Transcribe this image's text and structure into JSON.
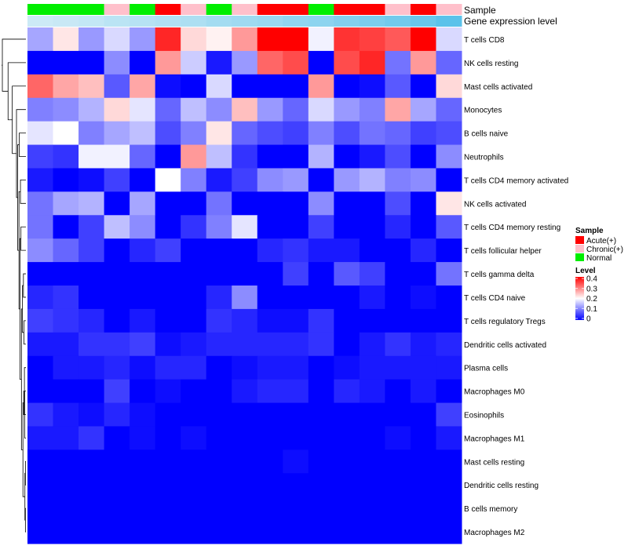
{
  "chart_data": {
    "type": "heatmap",
    "annotation_titles": [
      "Sample",
      "Gene expression level"
    ],
    "rows": [
      "T cells CD8",
      "NK cells resting",
      "Mast cells activated",
      "Monocytes",
      "B cells naive",
      "Neutrophils",
      "T cells CD4 memory activated",
      "NK cells activated",
      "T cells CD4 memory resting",
      "T cells follicular helper",
      "T cells gamma delta",
      "T cells CD4 naive",
      "T cells regulatory  Tregs",
      "Dendritic cells activated",
      "Plasma cells",
      "Macrophages M0",
      "Eosinophils",
      "Macrophages M1",
      "Mast cells resting",
      "Dendritic cells resting",
      "B cells memory",
      "Macrophages M2"
    ],
    "column_samples": [
      "Normal",
      "Normal",
      "Normal",
      "Chronic(+)",
      "Normal",
      "Acute(+)",
      "Chronic(+)",
      "Normal",
      "Chronic(+)",
      "Acute(+)",
      "Acute(+)",
      "Normal",
      "Acute(+)",
      "Acute(+)",
      "Chronic(+)",
      "Acute(+)",
      "Chronic(+)"
    ],
    "gene_expression_level": [
      0.05,
      0.06,
      0.07,
      0.09,
      0.1,
      0.11,
      0.12,
      0.14,
      0.15,
      0.16,
      0.18,
      0.19,
      0.21,
      0.23,
      0.25,
      0.27,
      0.3
    ],
    "values": [
      [
        0.13,
        0.22,
        0.12,
        0.17,
        0.12,
        0.37,
        0.23,
        0.21,
        0.28,
        0.4,
        0.4,
        0.19,
        0.36,
        0.35,
        0.33,
        0.4,
        0.17
      ],
      [
        0.0,
        0.0,
        0.0,
        0.11,
        0.0,
        0.28,
        0.16,
        0.02,
        0.12,
        0.32,
        0.34,
        0.0,
        0.34,
        0.37,
        0.09,
        0.28,
        0.08
      ],
      [
        0.32,
        0.27,
        0.25,
        0.07,
        0.27,
        0.01,
        0.0,
        0.17,
        0.0,
        0.0,
        0.0,
        0.28,
        0.0,
        0.01,
        0.07,
        0.0,
        0.23
      ],
      [
        0.1,
        0.11,
        0.14,
        0.23,
        0.18,
        0.08,
        0.15,
        0.11,
        0.25,
        0.12,
        0.08,
        0.17,
        0.12,
        0.1,
        0.27,
        0.13,
        0.08
      ],
      [
        0.18,
        0.2,
        0.1,
        0.13,
        0.15,
        0.06,
        0.1,
        0.22,
        0.08,
        0.06,
        0.05,
        0.1,
        0.06,
        0.09,
        0.08,
        0.05,
        0.06
      ],
      [
        0.05,
        0.04,
        0.19,
        0.19,
        0.08,
        0.0,
        0.28,
        0.15,
        0.04,
        0.0,
        0.0,
        0.14,
        0.0,
        0.02,
        0.06,
        0.0,
        0.11
      ],
      [
        0.02,
        0.0,
        0.01,
        0.05,
        0.0,
        0.2,
        0.1,
        0.02,
        0.05,
        0.11,
        0.12,
        0.0,
        0.12,
        0.14,
        0.1,
        0.11,
        0.0
      ],
      [
        0.09,
        0.13,
        0.14,
        0.0,
        0.13,
        0.0,
        0.0,
        0.09,
        0.0,
        0.0,
        0.0,
        0.11,
        0.0,
        0.0,
        0.06,
        0.0,
        0.22
      ],
      [
        0.09,
        0.0,
        0.05,
        0.15,
        0.11,
        0.0,
        0.04,
        0.1,
        0.18,
        0.0,
        0.0,
        0.05,
        0.0,
        0.0,
        0.03,
        0.0,
        0.07
      ],
      [
        0.11,
        0.08,
        0.05,
        0.0,
        0.03,
        0.05,
        0.0,
        0.0,
        0.0,
        0.03,
        0.04,
        0.02,
        0.02,
        0.0,
        0.0,
        0.03,
        0.0
      ],
      [
        0.0,
        0.0,
        0.0,
        0.0,
        0.0,
        0.0,
        0.0,
        0.0,
        0.0,
        0.0,
        0.05,
        0.0,
        0.07,
        0.05,
        0.0,
        0.0,
        0.09
      ],
      [
        0.03,
        0.04,
        0.0,
        0.0,
        0.0,
        0.0,
        0.0,
        0.03,
        0.11,
        0.0,
        0.0,
        0.0,
        0.0,
        0.02,
        0.0,
        0.01,
        0.0
      ],
      [
        0.05,
        0.04,
        0.03,
        0.0,
        0.02,
        0.0,
        0.0,
        0.04,
        0.03,
        0.01,
        0.01,
        0.04,
        0.0,
        0.0,
        0.0,
        0.0,
        0.0
      ],
      [
        0.02,
        0.02,
        0.04,
        0.04,
        0.05,
        0.01,
        0.02,
        0.03,
        0.03,
        0.03,
        0.03,
        0.04,
        0.0,
        0.02,
        0.04,
        0.02,
        0.03
      ],
      [
        0.0,
        0.02,
        0.02,
        0.03,
        0.01,
        0.03,
        0.03,
        0.0,
        0.01,
        0.02,
        0.02,
        0.0,
        0.01,
        0.02,
        0.02,
        0.02,
        0.02
      ],
      [
        0.0,
        0.0,
        0.0,
        0.05,
        0.0,
        0.01,
        0.0,
        0.0,
        0.02,
        0.03,
        0.03,
        0.0,
        0.03,
        0.02,
        0.0,
        0.02,
        0.0
      ],
      [
        0.04,
        0.02,
        0.01,
        0.03,
        0.01,
        0.0,
        0.0,
        0.0,
        0.0,
        0.0,
        0.0,
        0.0,
        0.0,
        0.0,
        0.0,
        0.0,
        0.05
      ],
      [
        0.02,
        0.02,
        0.04,
        0.0,
        0.01,
        0.0,
        0.01,
        0.0,
        0.0,
        0.0,
        0.0,
        0.0,
        0.0,
        0.0,
        0.01,
        0.0,
        0.02
      ],
      [
        0.0,
        0.0,
        0.0,
        0.0,
        0.0,
        0.0,
        0.0,
        0.0,
        0.0,
        0.0,
        0.01,
        0.0,
        0.0,
        0.0,
        0.0,
        0.0,
        0.0
      ],
      [
        0.0,
        0.0,
        0.0,
        0.0,
        0.0,
        0.0,
        0.0,
        0.0,
        0.0,
        0.0,
        0.0,
        0.0,
        0.0,
        0.0,
        0.0,
        0.0,
        0.0
      ],
      [
        0.0,
        0.0,
        0.0,
        0.0,
        0.0,
        0.0,
        0.0,
        0.0,
        0.0,
        0.0,
        0.0,
        0.0,
        0.0,
        0.0,
        0.0,
        0.0,
        0.0
      ],
      [
        0.0,
        0.0,
        0.0,
        0.0,
        0.0,
        0.0,
        0.0,
        0.0,
        0.0,
        0.0,
        0.0,
        0.0,
        0.0,
        0.0,
        0.0,
        0.0,
        0.0
      ]
    ],
    "color_scale": {
      "min": 0,
      "mid": 0.2,
      "max": 0.4,
      "low_color": "#0000ff",
      "mid_color": "#ffffff",
      "high_color": "#ff0000"
    },
    "expression_scale": {
      "min": 0,
      "max": 0.3,
      "low_color": "#e3f2f8",
      "high_color": "#5bc2ea"
    },
    "legend": {
      "sample": {
        "title": "Sample",
        "items": [
          {
            "label": "Acute(+)",
            "color": "#ff0000"
          },
          {
            "label": "Chronic(+)",
            "color": "#ffc0cb"
          },
          {
            "label": "Normal",
            "color": "#00ee00"
          }
        ]
      },
      "level": {
        "title": "Level",
        "ticks": [
          "0.4",
          "0.3",
          "0.2",
          "0.1",
          "0"
        ]
      }
    },
    "dendrogram": {
      "merges": [
        [
          -19,
          -20
        ],
        [
          -21,
          -22
        ],
        [
          1,
          2
        ],
        [
          -16,
          -18
        ],
        [
          -15,
          -17
        ],
        [
          4,
          5
        ],
        [
          3,
          6
        ],
        [
          -13,
          -14
        ],
        [
          -11,
          -12
        ],
        [
          8,
          9
        ],
        [
          7,
          10
        ],
        [
          -9,
          -10
        ],
        [
          11,
          12
        ],
        [
          -7,
          -8
        ],
        [
          13,
          14
        ],
        [
          -5,
          -6
        ],
        [
          15,
          16
        ],
        [
          -4,
          17
        ],
        [
          -3,
          18
        ],
        [
          -2,
          19
        ],
        [
          -1,
          20
        ]
      ],
      "heights": [
        0.02,
        0.02,
        0.04,
        0.05,
        0.06,
        0.09,
        0.12,
        0.08,
        0.1,
        0.14,
        0.18,
        0.2,
        0.24,
        0.22,
        0.28,
        0.27,
        0.33,
        0.38,
        0.55,
        0.72,
        0.95
      ]
    }
  }
}
